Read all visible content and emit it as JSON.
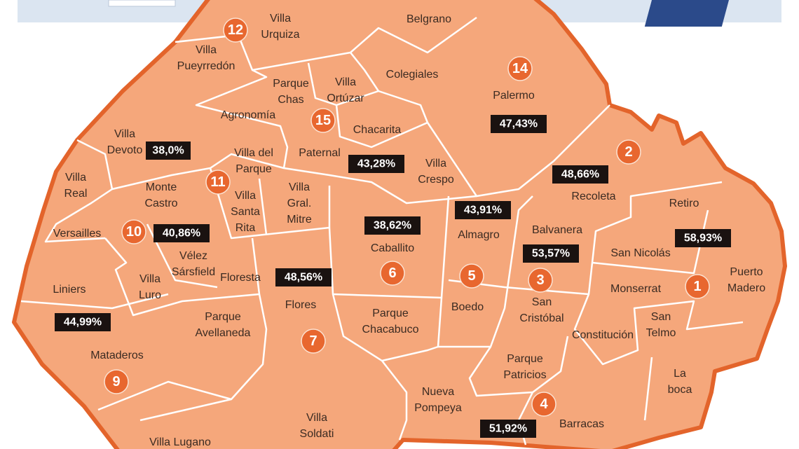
{
  "neighborhoods": [
    {
      "lines": [
        "Belgrano"
      ]
    },
    {
      "lines": [
        "Villa",
        "Pueyrredón"
      ]
    },
    {
      "lines": [
        "Villa",
        "Urquiza"
      ]
    },
    {
      "lines": [
        "Parque",
        "Chas"
      ]
    },
    {
      "lines": [
        "Villa",
        "Ortúzar"
      ]
    },
    {
      "lines": [
        "Colegiales"
      ]
    },
    {
      "lines": [
        "Palermo"
      ]
    },
    {
      "lines": [
        "Agronomía"
      ]
    },
    {
      "lines": [
        "Chacarita"
      ]
    },
    {
      "lines": [
        "Villa",
        "Devoto"
      ]
    },
    {
      "lines": [
        "Paternal"
      ]
    },
    {
      "lines": [
        "Villa del",
        "Parque"
      ]
    },
    {
      "lines": [
        "Villa",
        "Crespo"
      ]
    },
    {
      "lines": [
        "Villa",
        "Real"
      ]
    },
    {
      "lines": [
        "Monte",
        "Castro"
      ]
    },
    {
      "lines": [
        "Villa",
        "Santa",
        "Rita"
      ]
    },
    {
      "lines": [
        "Villa",
        "Gral.",
        "Mitre"
      ]
    },
    {
      "lines": [
        "Recoleta"
      ]
    },
    {
      "lines": [
        "Retiro"
      ]
    },
    {
      "lines": [
        "Versailles"
      ]
    },
    {
      "lines": [
        "Caballito"
      ]
    },
    {
      "lines": [
        "Almagro"
      ]
    },
    {
      "lines": [
        "Balvanera"
      ]
    },
    {
      "lines": [
        "San Nicolás"
      ]
    },
    {
      "lines": [
        "Vélez",
        "Sársfield"
      ]
    },
    {
      "lines": [
        "Floresta"
      ]
    },
    {
      "lines": [
        "Villa",
        "Luro"
      ]
    },
    {
      "lines": [
        "Puerto",
        "Madero"
      ]
    },
    {
      "lines": [
        "Liniers"
      ]
    },
    {
      "lines": [
        "Monserrat"
      ]
    },
    {
      "lines": [
        "Flores"
      ]
    },
    {
      "lines": [
        "Boedo"
      ]
    },
    {
      "lines": [
        "San",
        "Cristóbal"
      ]
    },
    {
      "lines": [
        "Parque",
        "Chacabuco"
      ]
    },
    {
      "lines": [
        "Parque",
        "Avellaneda"
      ]
    },
    {
      "lines": [
        "San",
        "Telmo"
      ]
    },
    {
      "lines": [
        "Constitución"
      ]
    },
    {
      "lines": [
        "Mataderos"
      ]
    },
    {
      "lines": [
        "Parque",
        "Patricios"
      ]
    },
    {
      "lines": [
        "La",
        "boca"
      ]
    },
    {
      "lines": [
        "Nueva",
        "Pompeya"
      ]
    },
    {
      "lines": [
        "Villa",
        "Soldati"
      ]
    },
    {
      "lines": [
        "Barracas"
      ]
    },
    {
      "lines": [
        "Villa Lugano"
      ]
    }
  ],
  "comunas": [
    12,
    14,
    15,
    2,
    11,
    10,
    6,
    5,
    3,
    1,
    7,
    9,
    4
  ],
  "results": [
    "38,0%",
    "43,28%",
    "47,43%",
    "48,66%",
    "38,62%",
    "43,91%",
    "40,86%",
    "53,57%",
    "58,93%",
    "48,56%",
    "44,99%",
    "51,92%"
  ]
}
